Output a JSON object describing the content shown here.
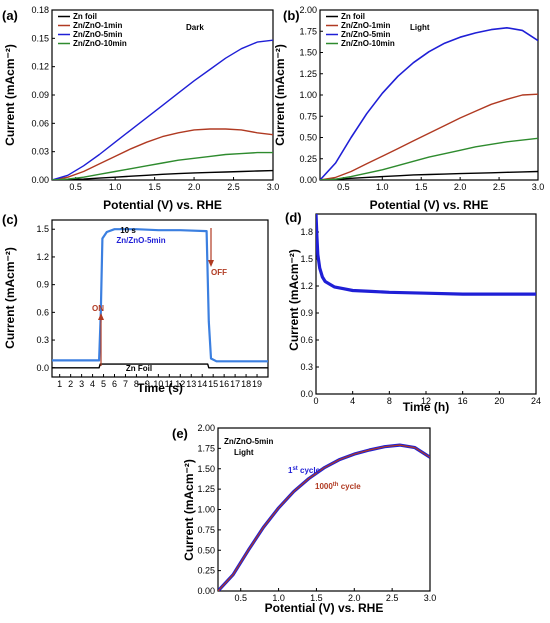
{
  "colors": {
    "black": "#000000",
    "red": "#b03a22",
    "blue": "#1f1fd6",
    "green": "#2e8b2e",
    "trace": "#3b7fe0",
    "purple": "#6b2a9a",
    "arrow": "#b03a22"
  },
  "chart_data": [
    {
      "id": "a",
      "type": "line",
      "panel_label": "(a)",
      "annotation": "Dark",
      "xlabel": "Potential (V) vs. RHE",
      "ylabel": "Current (mAcm⁻²)",
      "xlim": [
        0.2,
        3.0
      ],
      "ylim": [
        0,
        0.18
      ],
      "xticks": [
        0.5,
        1.0,
        1.5,
        2.0,
        2.5,
        3.0
      ],
      "xticklabels": [
        "0.5",
        "1.0",
        "1.5",
        "2.0",
        "2.5",
        "3.0"
      ],
      "yticks": [
        0,
        0.03,
        0.06,
        0.09,
        0.12,
        0.15,
        0.18
      ],
      "yticklabels": [
        "0.00",
        "0.03",
        "0.06",
        "0.09",
        "0.12",
        "0.15",
        "0.18"
      ],
      "x": [
        0.2,
        0.4,
        0.6,
        0.8,
        1.0,
        1.2,
        1.4,
        1.6,
        1.8,
        2.0,
        2.2,
        2.4,
        2.6,
        2.8,
        3.0
      ],
      "series": [
        {
          "name": "Zn foil",
          "color": "#000000",
          "values": [
            0,
            0.0005,
            0.001,
            0.002,
            0.003,
            0.004,
            0.005,
            0.006,
            0.0068,
            0.0075,
            0.008,
            0.0085,
            0.009,
            0.0095,
            0.01
          ]
        },
        {
          "name": "Zn/ZnO-1min",
          "color": "#b03a22",
          "values": [
            0,
            0.003,
            0.009,
            0.017,
            0.025,
            0.033,
            0.04,
            0.046,
            0.05,
            0.053,
            0.054,
            0.054,
            0.053,
            0.05,
            0.048
          ]
        },
        {
          "name": "Zn/ZnO-5min",
          "color": "#1f1fd6",
          "values": [
            0,
            0.005,
            0.015,
            0.027,
            0.04,
            0.053,
            0.066,
            0.079,
            0.092,
            0.105,
            0.117,
            0.129,
            0.139,
            0.146,
            0.148
          ]
        },
        {
          "name": "Zn/ZnO-10min",
          "color": "#2e8b2e",
          "values": [
            0,
            0.001,
            0.003,
            0.006,
            0.009,
            0.012,
            0.015,
            0.018,
            0.021,
            0.023,
            0.025,
            0.027,
            0.028,
            0.029,
            0.029
          ]
        }
      ]
    },
    {
      "id": "b",
      "type": "line",
      "panel_label": "(b)",
      "annotation": "Light",
      "xlabel": "Potential (V) vs. RHE",
      "ylabel": "Current (mAcm⁻²)",
      "xlim": [
        0.2,
        3.0
      ],
      "ylim": [
        0,
        2.0
      ],
      "xticks": [
        0.5,
        1.0,
        1.5,
        2.0,
        2.5,
        3.0
      ],
      "xticklabels": [
        "0.5",
        "1.0",
        "1.5",
        "2.0",
        "2.5",
        "3.0"
      ],
      "yticks": [
        0,
        0.25,
        0.5,
        0.75,
        1.0,
        1.25,
        1.5,
        1.75,
        2.0
      ],
      "yticklabels": [
        "0.00",
        "0.25",
        "0.50",
        "0.75",
        "1.00",
        "1.25",
        "1.50",
        "1.75",
        "2.00"
      ],
      "x": [
        0.2,
        0.4,
        0.6,
        0.8,
        1.0,
        1.2,
        1.4,
        1.6,
        1.8,
        2.0,
        2.2,
        2.4,
        2.6,
        2.8,
        3.0
      ],
      "series": [
        {
          "name": "Zn foil",
          "color": "#000000",
          "values": [
            0,
            0.01,
            0.02,
            0.03,
            0.04,
            0.05,
            0.06,
            0.065,
            0.07,
            0.075,
            0.08,
            0.085,
            0.09,
            0.095,
            0.1
          ]
        },
        {
          "name": "Zn/ZnO-1min",
          "color": "#b03a22",
          "values": [
            0,
            0.03,
            0.1,
            0.19,
            0.28,
            0.37,
            0.46,
            0.55,
            0.64,
            0.73,
            0.81,
            0.89,
            0.95,
            1.0,
            1.01
          ]
        },
        {
          "name": "Zn/ZnO-5min",
          "color": "#1f1fd6",
          "values": [
            0,
            0.2,
            0.5,
            0.78,
            1.02,
            1.22,
            1.38,
            1.51,
            1.61,
            1.68,
            1.73,
            1.77,
            1.79,
            1.76,
            1.64
          ]
        },
        {
          "name": "Zn/ZnO-10min",
          "color": "#2e8b2e",
          "values": [
            0,
            0.01,
            0.04,
            0.08,
            0.12,
            0.17,
            0.22,
            0.27,
            0.31,
            0.35,
            0.39,
            0.42,
            0.45,
            0.47,
            0.49
          ]
        }
      ]
    },
    {
      "id": "c",
      "type": "line",
      "panel_label": "(c)",
      "xlabel": "Time (s)",
      "ylabel": "Current (mAcm⁻²)",
      "xlim": [
        0.3,
        20
      ],
      "ylim": [
        -0.1,
        1.6
      ],
      "xticks": [
        1,
        2,
        3,
        4,
        5,
        6,
        7,
        8,
        9,
        10,
        11,
        12,
        13,
        14,
        15,
        16,
        17,
        18,
        19
      ],
      "xticklabels": [
        "1",
        "2",
        "3",
        "4",
        "5",
        "6",
        "7",
        "8",
        "9",
        "10",
        "11",
        "12",
        "13",
        "14",
        "15",
        "16",
        "17",
        "18",
        "19"
      ],
      "yticks": [
        0,
        0.3,
        0.6,
        0.9,
        1.2,
        1.5
      ],
      "yticklabels": [
        "0.0",
        "0.3",
        "0.6",
        "0.9",
        "1.2",
        "1.5"
      ],
      "annotations": {
        "duration": "10 s",
        "sample": "Zn/ZnO-5min",
        "on": "ON",
        "off": "OFF",
        "foil": "Zn Foil"
      },
      "series": [
        {
          "name": "Zn/ZnO-5min",
          "color": "#3b7fe0",
          "x": [
            0.3,
            4.6,
            4.75,
            4.9,
            5.3,
            6,
            8,
            10,
            12,
            14.4,
            14.6,
            14.8,
            15.3,
            17,
            20
          ],
          "values": [
            0.08,
            0.08,
            0.6,
            1.4,
            1.47,
            1.5,
            1.5,
            1.49,
            1.49,
            1.48,
            0.5,
            0.1,
            0.07,
            0.07,
            0.07
          ]
        },
        {
          "name": "Zn Foil",
          "color": "#000000",
          "x": [
            0.3,
            4.6,
            4.7,
            14.5,
            14.6,
            20
          ],
          "values": [
            0.0,
            0.0,
            0.04,
            0.04,
            0.0,
            0.0
          ]
        }
      ]
    },
    {
      "id": "d",
      "type": "line",
      "panel_label": "(d)",
      "xlabel": "Time (h)",
      "ylabel": "Current (mAcm⁻²)",
      "xlim": [
        0,
        24
      ],
      "ylim": [
        0,
        2.0
      ],
      "xticks": [
        0,
        4,
        8,
        12,
        16,
        20,
        24
      ],
      "xticklabels": [
        "0",
        "4",
        "8",
        "12",
        "16",
        "20",
        "24"
      ],
      "yticks": [
        0,
        0.3,
        0.6,
        0.9,
        1.2,
        1.5,
        1.8
      ],
      "yticklabels": [
        "0.0",
        "0.3",
        "0.6",
        "0.9",
        "1.2",
        "1.5",
        "1.8"
      ],
      "series": [
        {
          "name": "Zn/ZnO-5min",
          "color": "#1f1fd6",
          "x": [
            0,
            0.1,
            0.2,
            0.4,
            0.7,
            1.0,
            1.5,
            2,
            3,
            4,
            6,
            8,
            12,
            16,
            20,
            24
          ],
          "values": [
            2.0,
            1.75,
            1.55,
            1.4,
            1.3,
            1.25,
            1.22,
            1.19,
            1.17,
            1.15,
            1.14,
            1.13,
            1.12,
            1.11,
            1.11,
            1.11
          ]
        }
      ]
    },
    {
      "id": "e",
      "type": "line",
      "panel_label": "(e)",
      "annotation": "Zn/ZnO-5min\nLight",
      "xlabel": "Potential (V) vs. RHE",
      "ylabel": "Current (mAcm⁻²)",
      "xlim": [
        0.2,
        3.0
      ],
      "ylim": [
        0,
        2.0
      ],
      "xticks": [
        0.5,
        1.0,
        1.5,
        2.0,
        2.5,
        3.0
      ],
      "xticklabels": [
        "0.5",
        "1.0",
        "1.5",
        "2.0",
        "2.5",
        "3.0"
      ],
      "yticks": [
        0,
        0.25,
        0.5,
        0.75,
        1.0,
        1.25,
        1.5,
        1.75,
        2.0
      ],
      "yticklabels": [
        "0.00",
        "0.25",
        "0.50",
        "0.75",
        "1.00",
        "1.25",
        "1.50",
        "1.75",
        "2.00"
      ],
      "x": [
        0.2,
        0.4,
        0.6,
        0.8,
        1.0,
        1.2,
        1.4,
        1.6,
        1.8,
        2.0,
        2.2,
        2.4,
        2.6,
        2.8,
        3.0
      ],
      "series": [
        {
          "name": "1st cycle",
          "name_base": "1",
          "name_sup": "st",
          "name_rest": " cycle",
          "color": "#1f1fd6",
          "values": [
            0,
            0.2,
            0.5,
            0.78,
            1.02,
            1.22,
            1.38,
            1.51,
            1.61,
            1.68,
            1.73,
            1.77,
            1.79,
            1.76,
            1.64
          ]
        },
        {
          "name": "1000th cycle",
          "name_base": "1000",
          "name_sup": "th",
          "name_rest": " cycle",
          "color": "#b03a22",
          "values": [
            0,
            0.2,
            0.5,
            0.78,
            1.02,
            1.22,
            1.38,
            1.51,
            1.61,
            1.68,
            1.73,
            1.77,
            1.79,
            1.76,
            1.64
          ]
        }
      ]
    }
  ]
}
